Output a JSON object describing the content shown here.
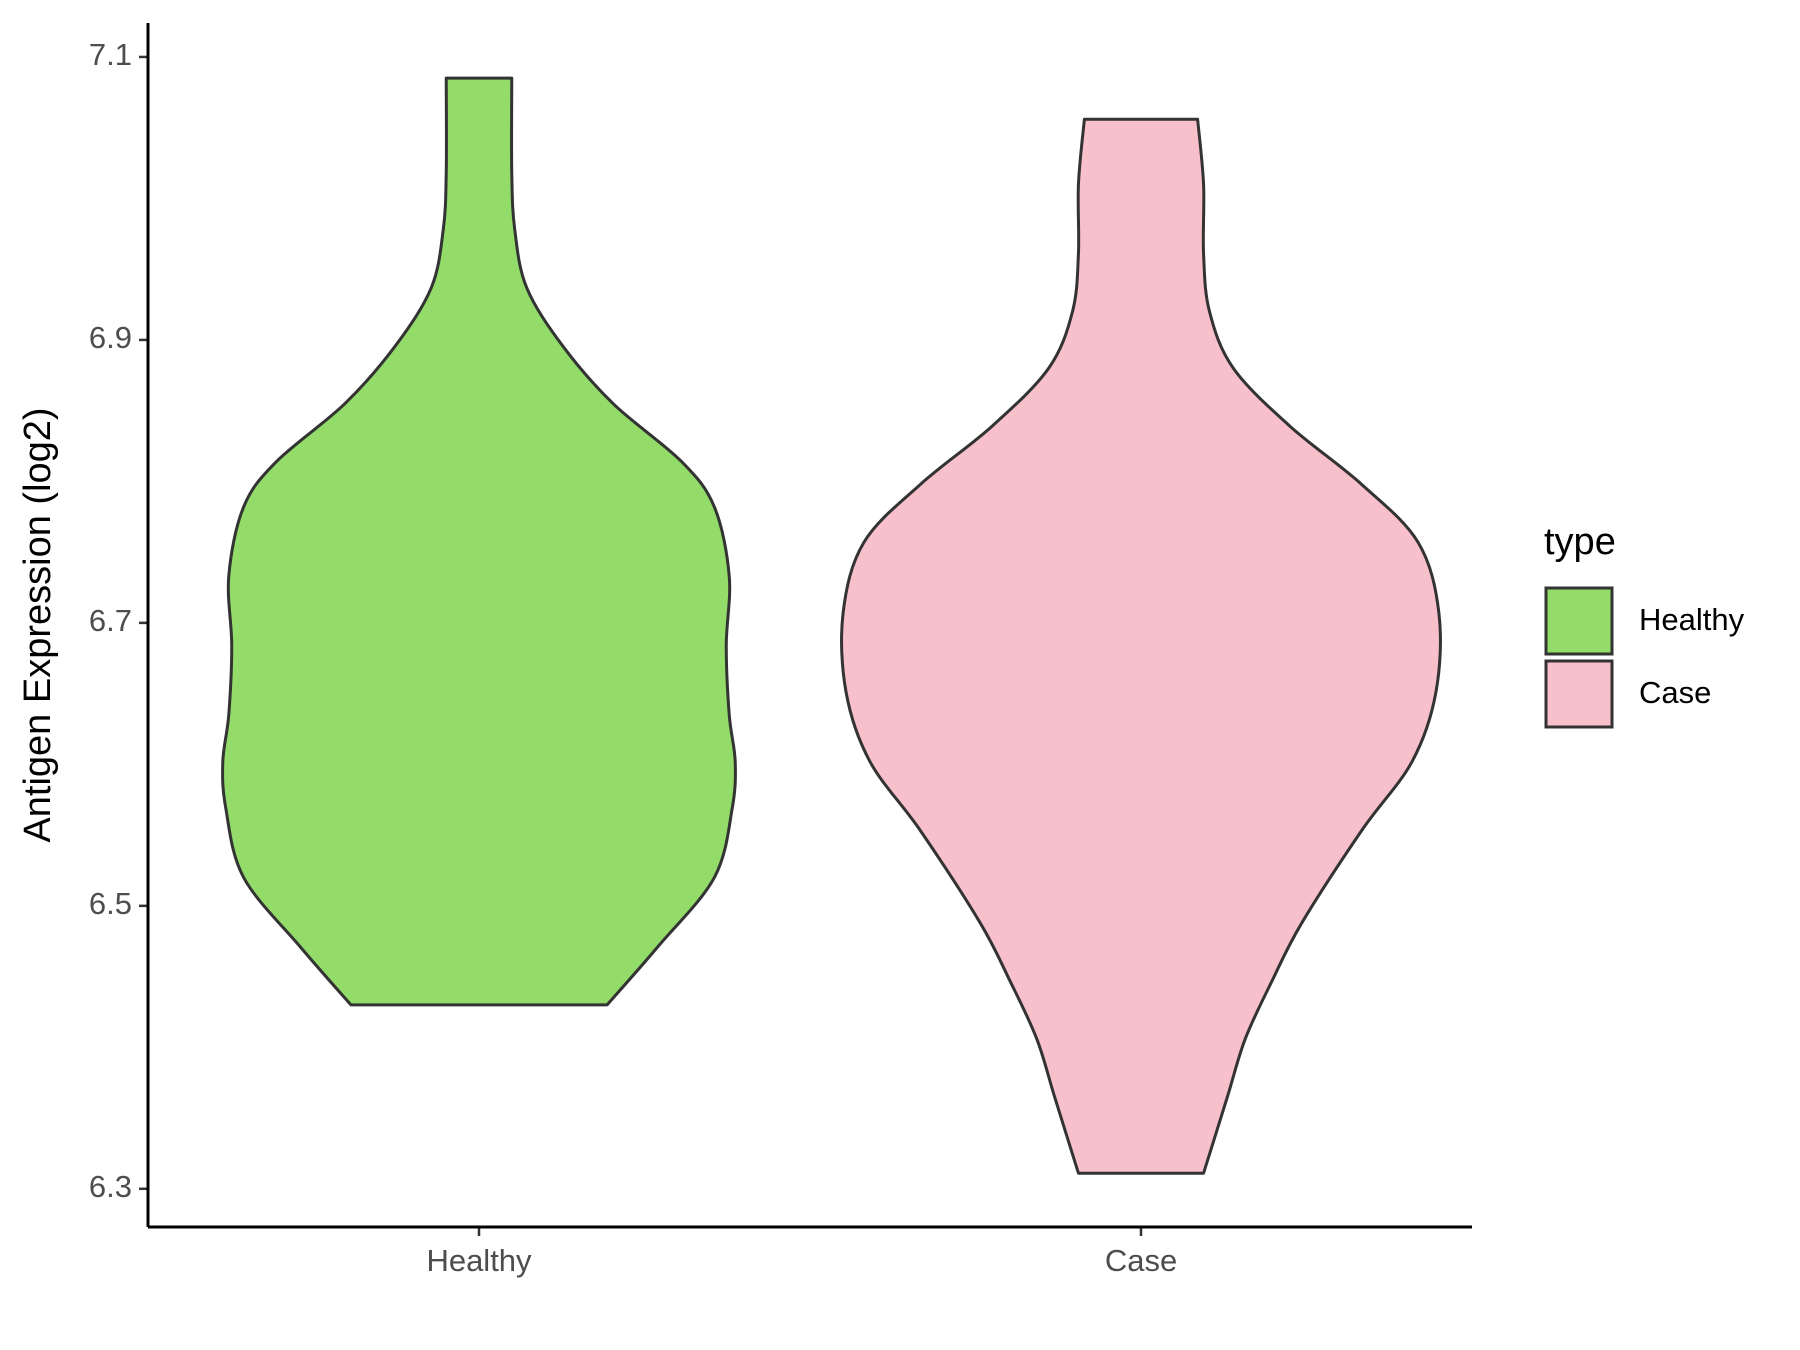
{
  "chart_data": {
    "type": "violin",
    "ylabel": "Antigen Expression (log2)",
    "legend_title": "type",
    "legend_position": "right",
    "categories": [
      "Healthy",
      "Case"
    ],
    "series": [
      {
        "name": "Healthy",
        "color": "#93dc6a",
        "y": [
          6.43,
          6.471,
          6.52,
          6.569,
          6.602,
          6.635,
          6.684,
          6.733,
          6.782,
          6.814,
          6.855,
          6.896,
          6.937,
          6.978,
          7.018,
          7.085
        ],
        "width": [
          0.43,
          0.6,
          0.79,
          0.85,
          0.86,
          0.84,
          0.83,
          0.84,
          0.79,
          0.68,
          0.45,
          0.28,
          0.16,
          0.12,
          0.11,
          0.11
        ]
      },
      {
        "name": "Case",
        "color": "#f8c0cb",
        "y": [
          6.311,
          6.365,
          6.406,
          6.447,
          6.488,
          6.553,
          6.602,
          6.651,
          6.707,
          6.757,
          6.798,
          6.839,
          6.88,
          6.92,
          6.961,
          7.01,
          7.056
        ],
        "width": [
          0.21,
          0.29,
          0.35,
          0.44,
          0.54,
          0.74,
          0.91,
          0.99,
          1.0,
          0.93,
          0.74,
          0.5,
          0.31,
          0.23,
          0.21,
          0.21,
          0.19
        ]
      }
    ],
    "ylim": [
      6.273,
      7.124
    ],
    "yticks": [
      6.3,
      6.5,
      6.7,
      6.9,
      7.1
    ]
  }
}
